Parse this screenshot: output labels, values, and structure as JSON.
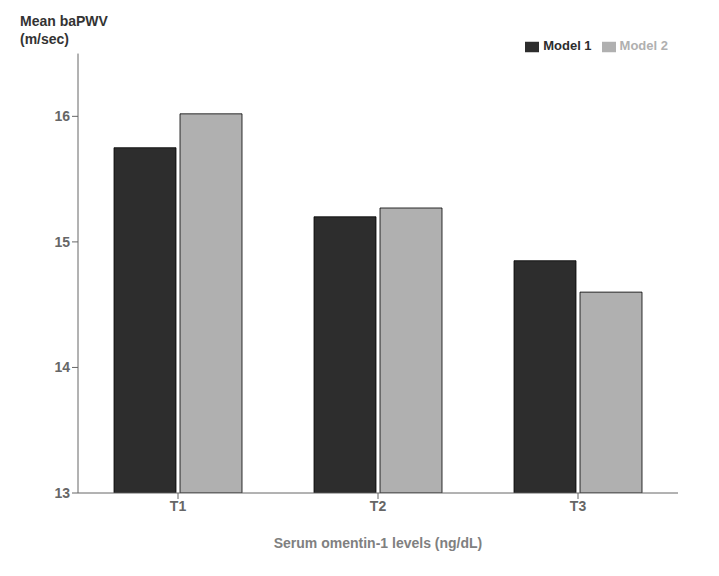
{
  "chart_data": {
    "type": "bar",
    "categories": [
      "T1",
      "T2",
      "T3"
    ],
    "series": [
      {
        "name": "Model 1",
        "color": "#2d2d2d",
        "values": [
          15.75,
          15.2,
          14.85
        ]
      },
      {
        "name": "Model 2",
        "color": "#b0b0b0",
        "values": [
          16.02,
          15.27,
          14.6
        ]
      }
    ],
    "xlabel": "Serum omentin-1 levels (ng/dL)",
    "ylabel": "Mean baPWV\n(m/sec)",
    "ylim": [
      13,
      16.5
    ],
    "yticks": [
      13,
      14,
      15,
      16
    ],
    "grid": false,
    "legend": "upper right"
  }
}
